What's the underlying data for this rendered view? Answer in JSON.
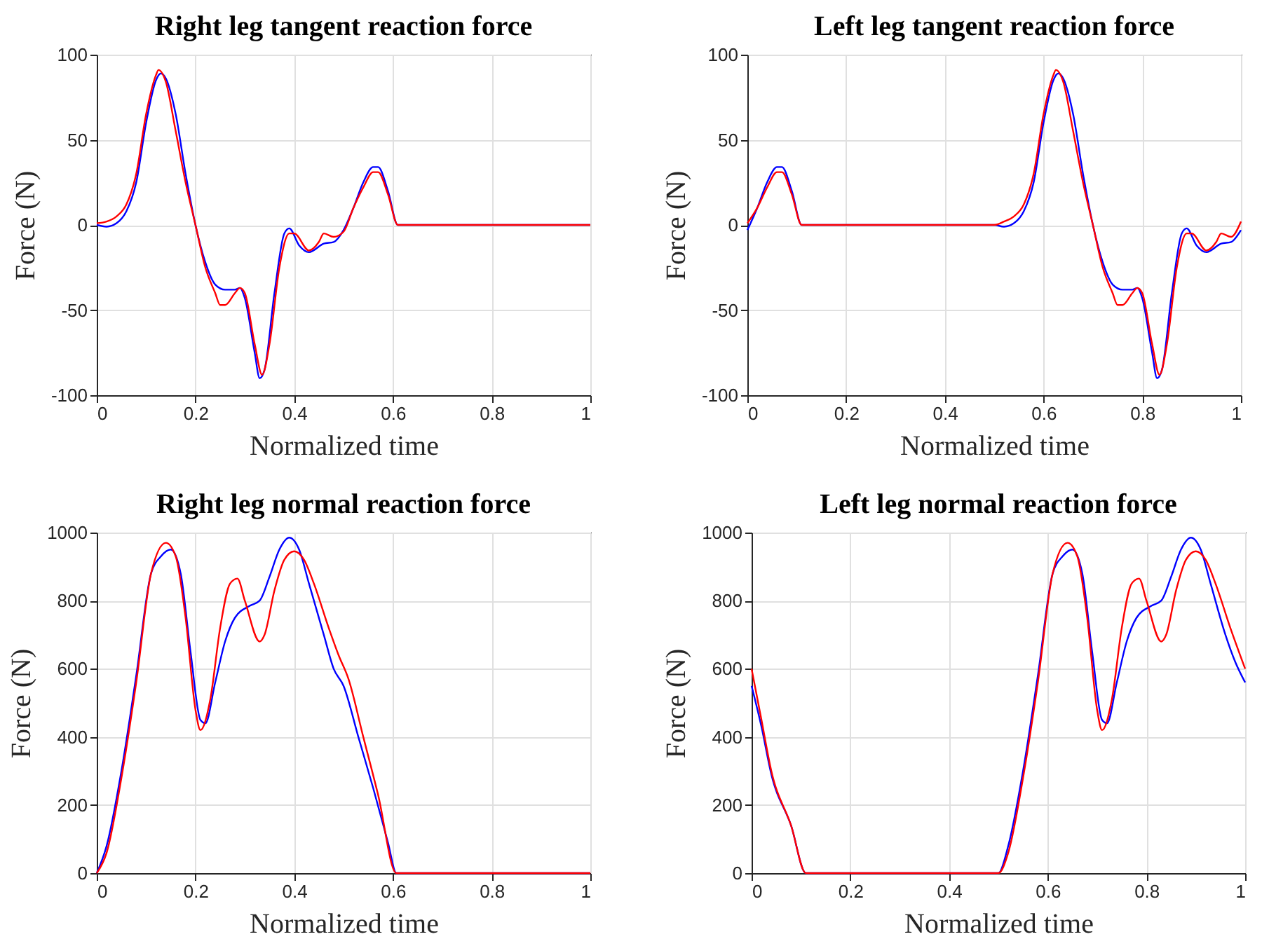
{
  "chart_data": [
    {
      "type": "line",
      "title": "Right leg tangent reaction force",
      "xlabel": "Normalized time",
      "ylabel": "Force (N)",
      "xlim": [
        0,
        1
      ],
      "xticks": [
        0,
        0.2,
        0.4,
        0.6,
        0.8,
        1
      ],
      "ylim": [
        -100,
        100
      ],
      "yticks": [
        -100,
        -50,
        0,
        50,
        100
      ],
      "grid": true,
      "series": [
        {
          "color": "#0000ff",
          "x": [
            0,
            0.02,
            0.04,
            0.06,
            0.08,
            0.1,
            0.12,
            0.13,
            0.14,
            0.16,
            0.18,
            0.2,
            0.22,
            0.24,
            0.26,
            0.28,
            0.29,
            0.3,
            0.32,
            0.33,
            0.34,
            0.36,
            0.38,
            0.39,
            0.41,
            0.43,
            0.46,
            0.48,
            0.5,
            0.52,
            0.54,
            0.56,
            0.57,
            0.59,
            0.61,
            1
          ],
          "values": [
            0,
            -1,
            1,
            8,
            25,
            60,
            85,
            89,
            86,
            65,
            30,
            0,
            -22,
            -35,
            -38,
            -38,
            -37,
            -43,
            -75,
            -90,
            -85,
            -40,
            -5,
            -2,
            -12,
            -16,
            -11,
            -10,
            -3,
            10,
            25,
            34,
            34,
            20,
            0,
            0
          ]
        },
        {
          "color": "#ff0000",
          "x": [
            0,
            0.02,
            0.04,
            0.06,
            0.08,
            0.1,
            0.12,
            0.125,
            0.14,
            0.16,
            0.18,
            0.2,
            0.22,
            0.24,
            0.25,
            0.26,
            0.28,
            0.29,
            0.3,
            0.32,
            0.335,
            0.35,
            0.37,
            0.39,
            0.4,
            0.43,
            0.45,
            0.46,
            0.48,
            0.5,
            0.52,
            0.54,
            0.56,
            0.57,
            0.59,
            0.61,
            1
          ],
          "values": [
            1,
            2,
            5,
            12,
            30,
            65,
            88,
            91,
            84,
            55,
            25,
            0,
            -25,
            -40,
            -47,
            -47,
            -40,
            -37,
            -40,
            -70,
            -88,
            -70,
            -25,
            -5,
            -5,
            -15,
            -10,
            -5,
            -7,
            -4,
            10,
            22,
            31,
            31,
            18,
            0,
            0
          ]
        }
      ]
    },
    {
      "type": "line",
      "title": "Left leg tangent reaction force",
      "xlabel": "Normalized time",
      "ylabel": "Force (N)",
      "xlim": [
        0,
        1
      ],
      "xticks": [
        0,
        0.2,
        0.4,
        0.6,
        0.8,
        1
      ],
      "ylim": [
        -100,
        100
      ],
      "yticks": [
        -100,
        -50,
        0,
        50,
        100
      ],
      "grid": true,
      "series": [
        {
          "color": "#0000ff",
          "x": [
            0,
            0.02,
            0.04,
            0.06,
            0.07,
            0.09,
            0.11,
            0.5,
            0.52,
            0.54,
            0.56,
            0.58,
            0.6,
            0.62,
            0.63,
            0.64,
            0.66,
            0.68,
            0.7,
            0.72,
            0.74,
            0.76,
            0.78,
            0.79,
            0.8,
            0.82,
            0.83,
            0.84,
            0.86,
            0.88,
            0.89,
            0.91,
            0.93,
            0.96,
            0.98,
            1
          ],
          "values": [
            -3,
            10,
            25,
            34,
            34,
            20,
            0,
            0,
            -1,
            1,
            8,
            25,
            60,
            85,
            89,
            86,
            65,
            30,
            0,
            -22,
            -35,
            -38,
            -38,
            -37,
            -43,
            -75,
            -90,
            -85,
            -40,
            -5,
            -2,
            -12,
            -16,
            -11,
            -10,
            -3
          ]
        },
        {
          "color": "#ff0000",
          "x": [
            0,
            0.02,
            0.04,
            0.06,
            0.07,
            0.09,
            0.11,
            0.5,
            0.52,
            0.54,
            0.56,
            0.58,
            0.6,
            0.62,
            0.625,
            0.64,
            0.66,
            0.68,
            0.7,
            0.72,
            0.74,
            0.75,
            0.76,
            0.78,
            0.79,
            0.8,
            0.82,
            0.835,
            0.85,
            0.87,
            0.89,
            0.9,
            0.93,
            0.95,
            0.96,
            0.98,
            1
          ],
          "values": [
            1,
            10,
            22,
            31,
            31,
            18,
            0,
            0,
            2,
            5,
            12,
            30,
            65,
            88,
            91,
            84,
            55,
            25,
            0,
            -25,
            -40,
            -47,
            -47,
            -40,
            -37,
            -40,
            -70,
            -88,
            -70,
            -25,
            -5,
            -5,
            -15,
            -10,
            -5,
            -7,
            2
          ]
        }
      ]
    },
    {
      "type": "line",
      "title": "Right leg normal reaction force",
      "xlabel": "Normalized time",
      "ylabel": "Force (N)",
      "xlim": [
        0,
        1
      ],
      "xticks": [
        0,
        0.2,
        0.4,
        0.6,
        0.8,
        1
      ],
      "ylim": [
        0,
        1000
      ],
      "yticks": [
        0,
        200,
        400,
        600,
        800,
        1000
      ],
      "grid": true,
      "series": [
        {
          "color": "#0000ff",
          "x": [
            0,
            0.02,
            0.05,
            0.08,
            0.11,
            0.13,
            0.15,
            0.17,
            0.19,
            0.21,
            0.22,
            0.24,
            0.26,
            0.28,
            0.31,
            0.33,
            0.35,
            0.37,
            0.39,
            0.41,
            0.43,
            0.46,
            0.48,
            0.5,
            0.53,
            0.56,
            0.59,
            0.607,
            1
          ],
          "values": [
            0,
            80,
            300,
            580,
            880,
            930,
            950,
            880,
            650,
            450,
            440,
            560,
            680,
            750,
            785,
            800,
            870,
            950,
            985,
            950,
            850,
            700,
            600,
            550,
            400,
            250,
            90,
            0,
            0
          ]
        },
        {
          "color": "#ff0000",
          "x": [
            0,
            0.02,
            0.05,
            0.08,
            0.11,
            0.14,
            0.16,
            0.18,
            0.2,
            0.21,
            0.23,
            0.25,
            0.27,
            0.285,
            0.3,
            0.33,
            0.34,
            0.36,
            0.38,
            0.4,
            0.42,
            0.44,
            0.47,
            0.49,
            0.51,
            0.54,
            0.57,
            0.607,
            1
          ],
          "values": [
            0,
            60,
            280,
            560,
            880,
            970,
            930,
            750,
            480,
            420,
            510,
            720,
            850,
            865,
            800,
            680,
            700,
            830,
            920,
            945,
            920,
            850,
            720,
            640,
            570,
            400,
            230,
            0,
            0
          ]
        }
      ]
    },
    {
      "type": "line",
      "title": "Left leg normal reaction force",
      "xlabel": "Normalized time",
      "ylabel": "Force (N)",
      "xlim": [
        0,
        1
      ],
      "xticks": [
        0,
        0.2,
        0.4,
        0.6,
        0.8,
        1
      ],
      "ylim": [
        0,
        1000
      ],
      "yticks": [
        0,
        200,
        400,
        600,
        800,
        1000
      ],
      "grid": true,
      "series": [
        {
          "color": "#0000ff",
          "x": [
            0,
            0.02,
            0.04,
            0.08,
            0.11,
            0.5,
            0.52,
            0.55,
            0.58,
            0.61,
            0.63,
            0.65,
            0.67,
            0.69,
            0.71,
            0.72,
            0.74,
            0.76,
            0.78,
            0.81,
            0.83,
            0.85,
            0.87,
            0.89,
            0.91,
            0.93,
            0.96,
            0.98,
            1
          ],
          "values": [
            550,
            430,
            290,
            140,
            0,
            0,
            80,
            300,
            580,
            880,
            930,
            950,
            880,
            650,
            450,
            440,
            560,
            680,
            750,
            785,
            800,
            870,
            950,
            985,
            950,
            850,
            700,
            620,
            560
          ]
        },
        {
          "color": "#ff0000",
          "x": [
            0,
            0.02,
            0.04,
            0.08,
            0.11,
            0.5,
            0.52,
            0.55,
            0.58,
            0.61,
            0.64,
            0.66,
            0.68,
            0.7,
            0.71,
            0.73,
            0.75,
            0.77,
            0.785,
            0.8,
            0.83,
            0.84,
            0.86,
            0.88,
            0.9,
            0.92,
            0.94,
            0.97,
            1
          ],
          "values": [
            600,
            450,
            300,
            140,
            0,
            0,
            60,
            280,
            560,
            880,
            970,
            930,
            750,
            480,
            420,
            510,
            720,
            850,
            865,
            800,
            680,
            700,
            830,
            920,
            945,
            920,
            850,
            720,
            600
          ]
        }
      ]
    }
  ]
}
